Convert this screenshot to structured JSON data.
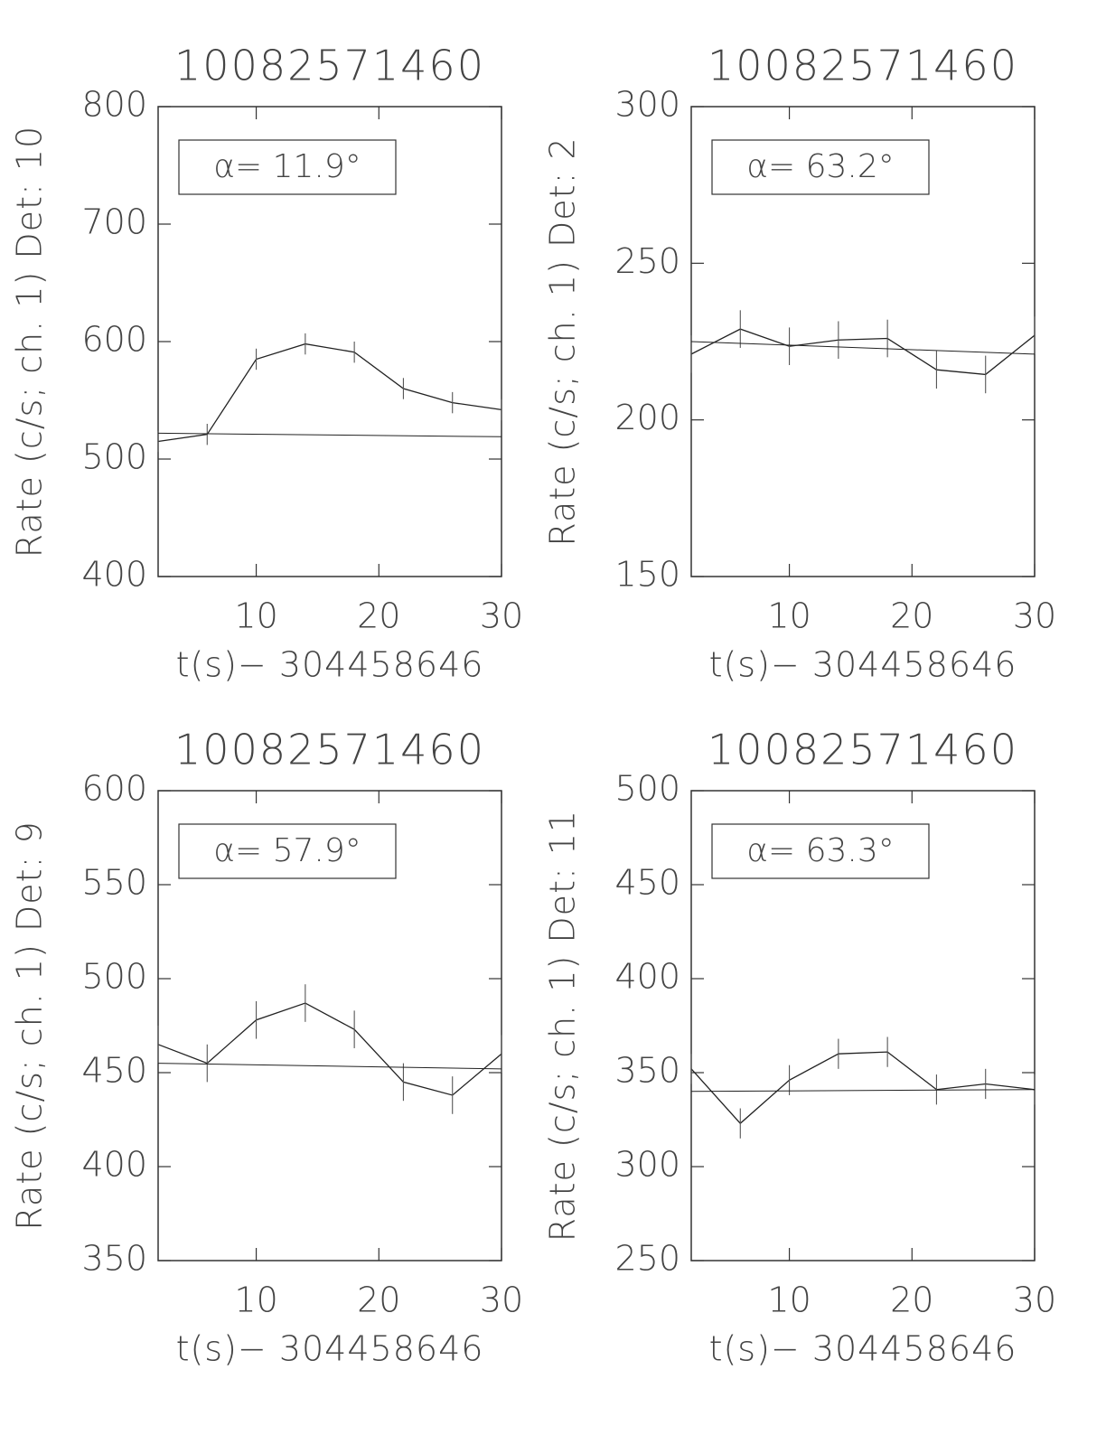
{
  "chart_data": [
    {
      "type": "line",
      "title": "10082571460",
      "annotation": "α= 11.9°",
      "xlabel": "t(s)− 304458646",
      "ylabel": "Rate (c/s; ch. 1) Det: 10",
      "x": [
        2,
        6,
        10,
        14,
        18,
        22,
        26,
        30
      ],
      "values": [
        515,
        521,
        585,
        598,
        591,
        560,
        548,
        542
      ],
      "errors": [
        9,
        9,
        9,
        9,
        9,
        9,
        9,
        9
      ],
      "fit_x": [
        2,
        30
      ],
      "fit": [
        522,
        519
      ],
      "color": "#222",
      "xlim": [
        2,
        30
      ],
      "ylim": [
        400,
        800
      ],
      "xticks": [
        10,
        20,
        30
      ],
      "yticks": [
        400,
        500,
        600,
        700,
        800
      ]
    },
    {
      "type": "line",
      "title": "10082571460",
      "annotation": "α= 63.2°",
      "xlabel": "t(s)− 304458646",
      "ylabel": "Rate (c/s; ch. 1) Det: 2",
      "x": [
        2,
        6,
        10,
        14,
        18,
        22,
        26,
        30
      ],
      "values": [
        221,
        229,
        223.5,
        225.5,
        226,
        216,
        214.5,
        227
      ],
      "errors": [
        6,
        6,
        6,
        6,
        6,
        6,
        6,
        6
      ],
      "fit_x": [
        2,
        30
      ],
      "fit": [
        225,
        221
      ],
      "color": "#222",
      "xlim": [
        2,
        30
      ],
      "ylim": [
        150,
        300
      ],
      "xticks": [
        10,
        20,
        30
      ],
      "yticks": [
        150,
        200,
        250,
        300
      ]
    },
    {
      "type": "line",
      "title": "10082571460",
      "annotation": "α= 57.9°",
      "xlabel": "t(s)− 304458646",
      "ylabel": "Rate (c/s; ch. 1) Det: 9",
      "x": [
        2,
        6,
        10,
        14,
        18,
        22,
        26,
        30
      ],
      "values": [
        465,
        455,
        478,
        487,
        473,
        445,
        438,
        460
      ],
      "errors": [
        10,
        10,
        10,
        10,
        10,
        10,
        10,
        10
      ],
      "fit_x": [
        2,
        30
      ],
      "fit": [
        455,
        452
      ],
      "color": "#222",
      "xlim": [
        2,
        30
      ],
      "ylim": [
        350,
        600
      ],
      "xticks": [
        10,
        20,
        30
      ],
      "yticks": [
        350,
        400,
        450,
        500,
        550,
        600
      ]
    },
    {
      "type": "line",
      "title": "10082571460",
      "annotation": "α= 63.3°",
      "xlabel": "t(s)− 304458646",
      "ylabel": "Rate (c/s; ch. 1) Det: 11",
      "x": [
        2,
        6,
        10,
        14,
        18,
        22,
        26,
        30
      ],
      "values": [
        352,
        323,
        346,
        360,
        361,
        341,
        344,
        341
      ],
      "errors": [
        8,
        8,
        8,
        8,
        8,
        8,
        8,
        8
      ],
      "fit_x": [
        2,
        30
      ],
      "fit": [
        340,
        341
      ],
      "color": "#222",
      "xlim": [
        2,
        30
      ],
      "ylim": [
        250,
        500
      ],
      "xticks": [
        10,
        20,
        30
      ],
      "yticks": [
        250,
        300,
        350,
        400,
        450,
        500
      ]
    }
  ]
}
